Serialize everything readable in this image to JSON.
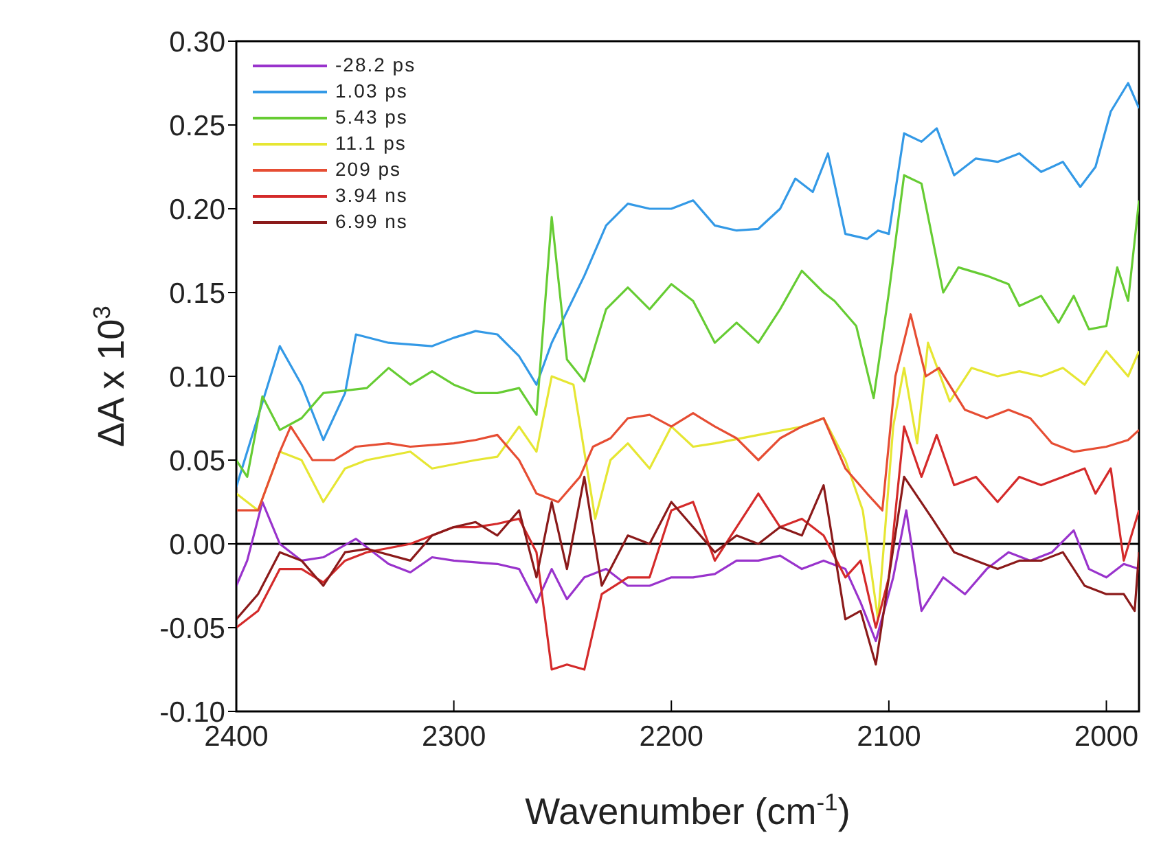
{
  "chart_data": {
    "type": "line",
    "xlabel": "Wavenumber (cm$^{-1}$)",
    "ylabel": "ΔA x 10$^{3}$",
    "xlim": [
      2400,
      1985
    ],
    "xticks": [
      2400,
      2300,
      2200,
      2100,
      2000
    ],
    "ylim": [
      -0.1,
      0.3
    ],
    "yticks": [
      {
        "value": -0.1,
        "label": "-0.10"
      },
      {
        "value": -0.05,
        "label": "-0.05"
      },
      {
        "value": 0,
        "label": "0.00"
      },
      {
        "value": 0.05,
        "label": "0.05"
      },
      {
        "value": 0.1,
        "label": "0.10"
      },
      {
        "value": 0.15,
        "label": "0.15"
      },
      {
        "value": 0.2,
        "label": "0.20"
      },
      {
        "value": 0.25,
        "label": "0.25"
      },
      {
        "value": 0.3,
        "label": "0.30"
      }
    ],
    "legend": "top left",
    "grid": false,
    "marker": "none",
    "line_style": "solid",
    "ref_lines": [
      {
        "axis": "y",
        "value": 0,
        "color": "#000000"
      }
    ],
    "series": [
      {
        "name": "-28.2 ps",
        "color": "#9933cc",
        "x": [
          2400,
          2395,
          2388,
          2380,
          2370,
          2360,
          2345,
          2330,
          2320,
          2310,
          2300,
          2280,
          2270,
          2262,
          2255,
          2248,
          2240,
          2230,
          2220,
          2210,
          2200,
          2190,
          2180,
          2170,
          2160,
          2150,
          2140,
          2130,
          2120,
          2113,
          2106,
          2098,
          2092,
          2085,
          2075,
          2065,
          2055,
          2045,
          2035,
          2025,
          2015,
          2008,
          2000,
          1992,
          1985
        ],
        "values": [
          -0.025,
          -0.01,
          0.025,
          0.0,
          -0.01,
          -0.008,
          0.003,
          -0.012,
          -0.017,
          -0.008,
          -0.01,
          -0.012,
          -0.015,
          -0.035,
          -0.015,
          -0.033,
          -0.02,
          -0.015,
          -0.025,
          -0.025,
          -0.02,
          -0.02,
          -0.018,
          -0.01,
          -0.01,
          -0.007,
          -0.015,
          -0.01,
          -0.015,
          -0.035,
          -0.058,
          -0.02,
          0.02,
          -0.04,
          -0.02,
          -0.03,
          -0.015,
          -0.005,
          -0.01,
          -0.005,
          0.008,
          -0.015,
          -0.02,
          -0.012,
          -0.015
        ]
      },
      {
        "name": "1.03 ps",
        "color": "#3399e6",
        "x": [
          2400,
          2380,
          2370,
          2360,
          2350,
          2345,
          2330,
          2310,
          2300,
          2290,
          2280,
          2270,
          2262,
          2255,
          2240,
          2230,
          2220,
          2210,
          2200,
          2190,
          2180,
          2170,
          2160,
          2150,
          2143,
          2135,
          2128,
          2120,
          2110,
          2105,
          2100,
          2093,
          2085,
          2078,
          2070,
          2060,
          2050,
          2040,
          2030,
          2020,
          2012,
          2005,
          1998,
          1990,
          1985
        ],
        "values": [
          0.034,
          0.118,
          0.095,
          0.062,
          0.09,
          0.125,
          0.12,
          0.118,
          0.123,
          0.127,
          0.125,
          0.112,
          0.095,
          0.12,
          0.16,
          0.19,
          0.203,
          0.2,
          0.2,
          0.205,
          0.19,
          0.187,
          0.188,
          0.2,
          0.218,
          0.21,
          0.233,
          0.185,
          0.182,
          0.187,
          0.185,
          0.245,
          0.24,
          0.248,
          0.22,
          0.23,
          0.228,
          0.233,
          0.222,
          0.228,
          0.213,
          0.225,
          0.258,
          0.275,
          0.26
        ]
      },
      {
        "name": "5.43 ps",
        "color": "#66cc33",
        "x": [
          2400,
          2395,
          2388,
          2380,
          2370,
          2360,
          2340,
          2330,
          2320,
          2310,
          2300,
          2290,
          2280,
          2270,
          2262,
          2255,
          2248,
          2240,
          2230,
          2220,
          2210,
          2200,
          2190,
          2180,
          2170,
          2160,
          2150,
          2140,
          2130,
          2125,
          2115,
          2107,
          2100,
          2093,
          2085,
          2075,
          2068,
          2055,
          2045,
          2040,
          2030,
          2022,
          2015,
          2008,
          2000,
          1995,
          1990,
          1985
        ],
        "values": [
          0.05,
          0.04,
          0.088,
          0.068,
          0.075,
          0.09,
          0.093,
          0.105,
          0.095,
          0.103,
          0.095,
          0.09,
          0.09,
          0.093,
          0.077,
          0.195,
          0.11,
          0.097,
          0.14,
          0.153,
          0.14,
          0.155,
          0.145,
          0.12,
          0.132,
          0.12,
          0.14,
          0.163,
          0.15,
          0.145,
          0.13,
          0.087,
          0.15,
          0.22,
          0.215,
          0.15,
          0.165,
          0.16,
          0.155,
          0.142,
          0.148,
          0.132,
          0.148,
          0.128,
          0.13,
          0.165,
          0.145,
          0.205
        ]
      },
      {
        "name": "11.1 ps",
        "color": "#e6e633",
        "x": [
          2400,
          2390,
          2380,
          2370,
          2360,
          2350,
          2340,
          2320,
          2310,
          2290,
          2280,
          2270,
          2262,
          2255,
          2245,
          2235,
          2228,
          2220,
          2210,
          2200,
          2190,
          2180,
          2160,
          2140,
          2130,
          2120,
          2112,
          2105,
          2098,
          2093,
          2087,
          2082,
          2072,
          2062,
          2050,
          2040,
          2030,
          2020,
          2010,
          2000,
          1990,
          1985
        ],
        "values": [
          0.03,
          0.02,
          0.055,
          0.05,
          0.025,
          0.045,
          0.05,
          0.055,
          0.045,
          0.05,
          0.052,
          0.07,
          0.055,
          0.1,
          0.095,
          0.015,
          0.05,
          0.06,
          0.045,
          0.07,
          0.058,
          0.06,
          0.065,
          0.07,
          0.075,
          0.05,
          0.02,
          -0.045,
          0.07,
          0.105,
          0.06,
          0.12,
          0.085,
          0.105,
          0.1,
          0.103,
          0.1,
          0.105,
          0.095,
          0.115,
          0.1,
          0.115
        ]
      },
      {
        "name": "209 ps",
        "color": "#e64d33",
        "x": [
          2400,
          2390,
          2380,
          2375,
          2365,
          2355,
          2345,
          2330,
          2320,
          2300,
          2290,
          2280,
          2270,
          2262,
          2252,
          2242,
          2236,
          2228,
          2220,
          2210,
          2200,
          2190,
          2180,
          2170,
          2160,
          2150,
          2140,
          2130,
          2120,
          2110,
          2103,
          2097,
          2090,
          2083,
          2077,
          2065,
          2055,
          2045,
          2035,
          2025,
          2015,
          2000,
          1990,
          1985
        ],
        "values": [
          0.02,
          0.02,
          0.055,
          0.07,
          0.05,
          0.05,
          0.058,
          0.06,
          0.058,
          0.06,
          0.062,
          0.065,
          0.05,
          0.03,
          0.025,
          0.04,
          0.058,
          0.063,
          0.075,
          0.077,
          0.07,
          0.078,
          0.07,
          0.063,
          0.05,
          0.063,
          0.07,
          0.075,
          0.045,
          0.03,
          0.02,
          0.1,
          0.137,
          0.1,
          0.105,
          0.08,
          0.075,
          0.08,
          0.075,
          0.06,
          0.055,
          0.058,
          0.062,
          0.068
        ]
      },
      {
        "name": "3.94 ns",
        "color": "#d42a2a",
        "x": [
          2400,
          2390,
          2380,
          2370,
          2360,
          2350,
          2340,
          2320,
          2310,
          2300,
          2290,
          2280,
          2270,
          2262,
          2255,
          2248,
          2240,
          2232,
          2220,
          2210,
          2200,
          2190,
          2180,
          2170,
          2160,
          2150,
          2140,
          2130,
          2120,
          2113,
          2106,
          2100,
          2093,
          2085,
          2078,
          2070,
          2060,
          2050,
          2040,
          2030,
          2020,
          2010,
          2005,
          1998,
          1992,
          1985
        ],
        "values": [
          -0.05,
          -0.04,
          -0.015,
          -0.015,
          -0.023,
          -0.01,
          -0.005,
          0,
          0.005,
          0.01,
          0.01,
          0.012,
          0.015,
          -0.005,
          -0.075,
          -0.072,
          -0.075,
          -0.03,
          -0.02,
          -0.02,
          0.02,
          0.025,
          -0.01,
          0.01,
          0.03,
          0.01,
          0.015,
          0.005,
          -0.02,
          -0.01,
          -0.05,
          -0.02,
          0.07,
          0.04,
          0.065,
          0.035,
          0.04,
          0.025,
          0.04,
          0.035,
          0.04,
          0.045,
          0.03,
          0.045,
          -0.01,
          0.02
        ]
      },
      {
        "name": "6.99 ns",
        "color": "#8b1a1a",
        "x": [
          2400,
          2390,
          2380,
          2370,
          2360,
          2350,
          2340,
          2320,
          2310,
          2300,
          2290,
          2280,
          2270,
          2262,
          2255,
          2248,
          2240,
          2232,
          2220,
          2210,
          2200,
          2190,
          2180,
          2170,
          2160,
          2150,
          2140,
          2130,
          2120,
          2113,
          2106,
          2100,
          2093,
          2080,
          2070,
          2060,
          2050,
          2040,
          2030,
          2020,
          2010,
          2000,
          1992,
          1987,
          1985
        ],
        "values": [
          -0.045,
          -0.03,
          -0.005,
          -0.01,
          -0.025,
          -0.005,
          -0.003,
          -0.01,
          0.005,
          0.01,
          0.013,
          0.005,
          0.02,
          -0.02,
          0.025,
          -0.015,
          0.04,
          -0.025,
          0.005,
          0.0,
          0.025,
          0.01,
          -0.005,
          0.005,
          0.0,
          0.01,
          0.005,
          0.035,
          -0.045,
          -0.04,
          -0.072,
          -0.02,
          0.04,
          0.015,
          -0.005,
          -0.01,
          -0.015,
          -0.01,
          -0.01,
          -0.005,
          -0.025,
          -0.03,
          -0.03,
          -0.04,
          -0.005
        ]
      }
    ]
  }
}
